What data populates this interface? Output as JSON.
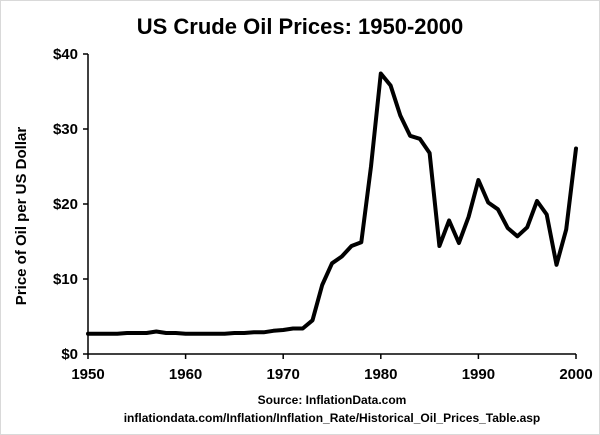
{
  "chart_data": {
    "type": "line",
    "title": "US Crude Oil Prices: 1950-2000",
    "xlabel": "",
    "ylabel": "Price of Oil per US Dollar",
    "xlim": [
      1950,
      2000
    ],
    "ylim": [
      0,
      40
    ],
    "x_ticks": [
      1950,
      1960,
      1970,
      1980,
      1990,
      2000
    ],
    "y_ticks": [
      0,
      10,
      20,
      30,
      40
    ],
    "y_tick_labels": [
      "$0",
      "$10",
      "$20",
      "$30",
      "$40"
    ],
    "grid": false,
    "series": [
      {
        "name": "US Crude Oil Price",
        "color": "#000000",
        "x": [
          1950,
          1951,
          1952,
          1953,
          1954,
          1955,
          1956,
          1957,
          1958,
          1959,
          1960,
          1961,
          1962,
          1963,
          1964,
          1965,
          1966,
          1967,
          1968,
          1969,
          1970,
          1971,
          1972,
          1973,
          1974,
          1975,
          1976,
          1977,
          1978,
          1979,
          1980,
          1981,
          1982,
          1983,
          1984,
          1985,
          1986,
          1987,
          1988,
          1989,
          1990,
          1991,
          1992,
          1993,
          1994,
          1995,
          1996,
          1997,
          1998,
          1999,
          2000
        ],
        "values": [
          2.7,
          2.7,
          2.7,
          2.7,
          2.8,
          2.8,
          2.8,
          3.0,
          2.8,
          2.8,
          2.7,
          2.7,
          2.7,
          2.7,
          2.7,
          2.8,
          2.8,
          2.9,
          2.9,
          3.1,
          3.2,
          3.4,
          3.4,
          4.5,
          9.2,
          12.1,
          13.0,
          14.4,
          14.9,
          25.0,
          37.4,
          35.8,
          31.8,
          29.1,
          28.7,
          26.8,
          14.4,
          17.8,
          14.8,
          18.3,
          23.2,
          20.2,
          19.3,
          16.8,
          15.7,
          16.9,
          20.4,
          18.6,
          11.9,
          16.6,
          27.4
        ]
      }
    ],
    "annotations": [
      "Source: InflationData.com",
      "inflationdata.com/Inflation/Inflation_Rate/Historical_Oil_Prices_Table.asp"
    ]
  }
}
